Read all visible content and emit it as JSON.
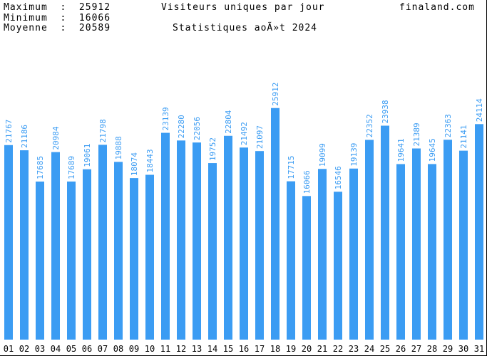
{
  "header": {
    "max_line": "Maximum  :  25912",
    "min_line": "Minimum  :  16066",
    "avg_line": "Moyenne  :  20589",
    "title": "Visiteurs uniques par jour",
    "site": "finaland.com",
    "subtitle": "Statistiques aoÃ»t 2024"
  },
  "colors": {
    "bar": "#3b9cf3",
    "label": "#3b9cf3",
    "text": "#000000",
    "background": "#ffffff"
  },
  "chart_data": {
    "type": "bar",
    "title": "Visiteurs uniques par jour",
    "subtitle": "Statistiques aoÃ»t 2024",
    "categories": [
      "01",
      "02",
      "03",
      "04",
      "05",
      "06",
      "07",
      "08",
      "09",
      "10",
      "11",
      "12",
      "13",
      "14",
      "15",
      "16",
      "17",
      "18",
      "19",
      "20",
      "21",
      "22",
      "23",
      "24",
      "25",
      "26",
      "27",
      "28",
      "29",
      "30",
      "31"
    ],
    "values": [
      21767,
      21186,
      17685,
      20984,
      17689,
      19061,
      21798,
      19888,
      18074,
      18443,
      23139,
      22280,
      22056,
      19752,
      22804,
      21492,
      21097,
      25912,
      17715,
      16066,
      19099,
      16546,
      19139,
      22352,
      23938,
      19641,
      21389,
      19645,
      22363,
      21141,
      24114
    ],
    "ylim": [
      0,
      38000
    ],
    "grid": false,
    "legend": "none",
    "value_labels": true,
    "label_orientation": "vertical"
  }
}
